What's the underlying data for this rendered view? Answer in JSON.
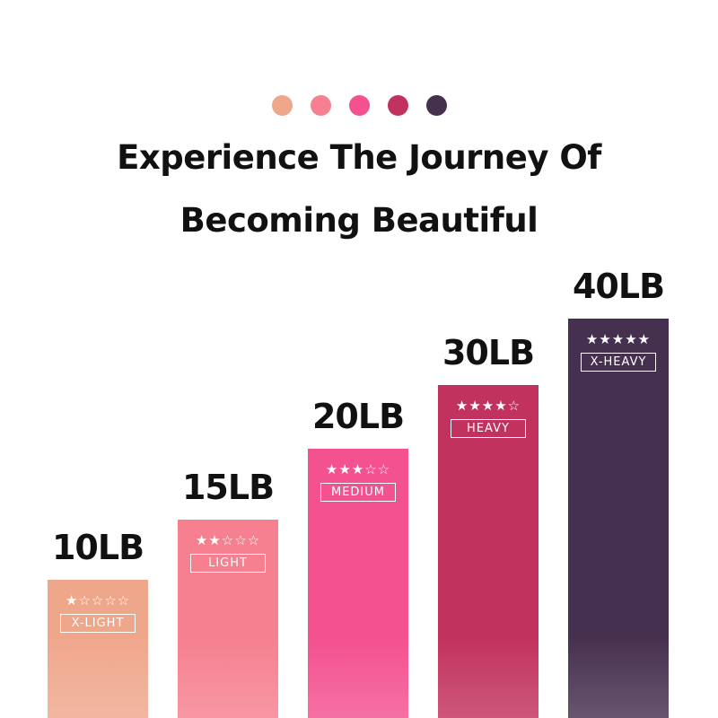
{
  "header": {
    "title_line1": "Experience The Journey Of",
    "title_line2": "Becoming Beautiful",
    "dot_colors": [
      "#EFA78C",
      "#F6808F",
      "#F45190",
      "#C2325E",
      "#46304F"
    ]
  },
  "chart_data": {
    "type": "bar",
    "categories": [
      "X-LIGHT",
      "LIGHT",
      "MEDIUM",
      "HEAVY",
      "X-HEAVY"
    ],
    "value_labels": [
      "10LB",
      "15LB",
      "20LB",
      "30LB",
      "40LB"
    ],
    "values": [
      10,
      15,
      20,
      30,
      40
    ],
    "ratings": [
      1,
      2,
      3,
      4,
      5
    ],
    "rating_max": 5,
    "colors": [
      "#EFA78C",
      "#F6808F",
      "#F45190",
      "#C2325E",
      "#46304F"
    ],
    "title": "",
    "xlabel": "",
    "ylabel": "",
    "grid": false
  }
}
